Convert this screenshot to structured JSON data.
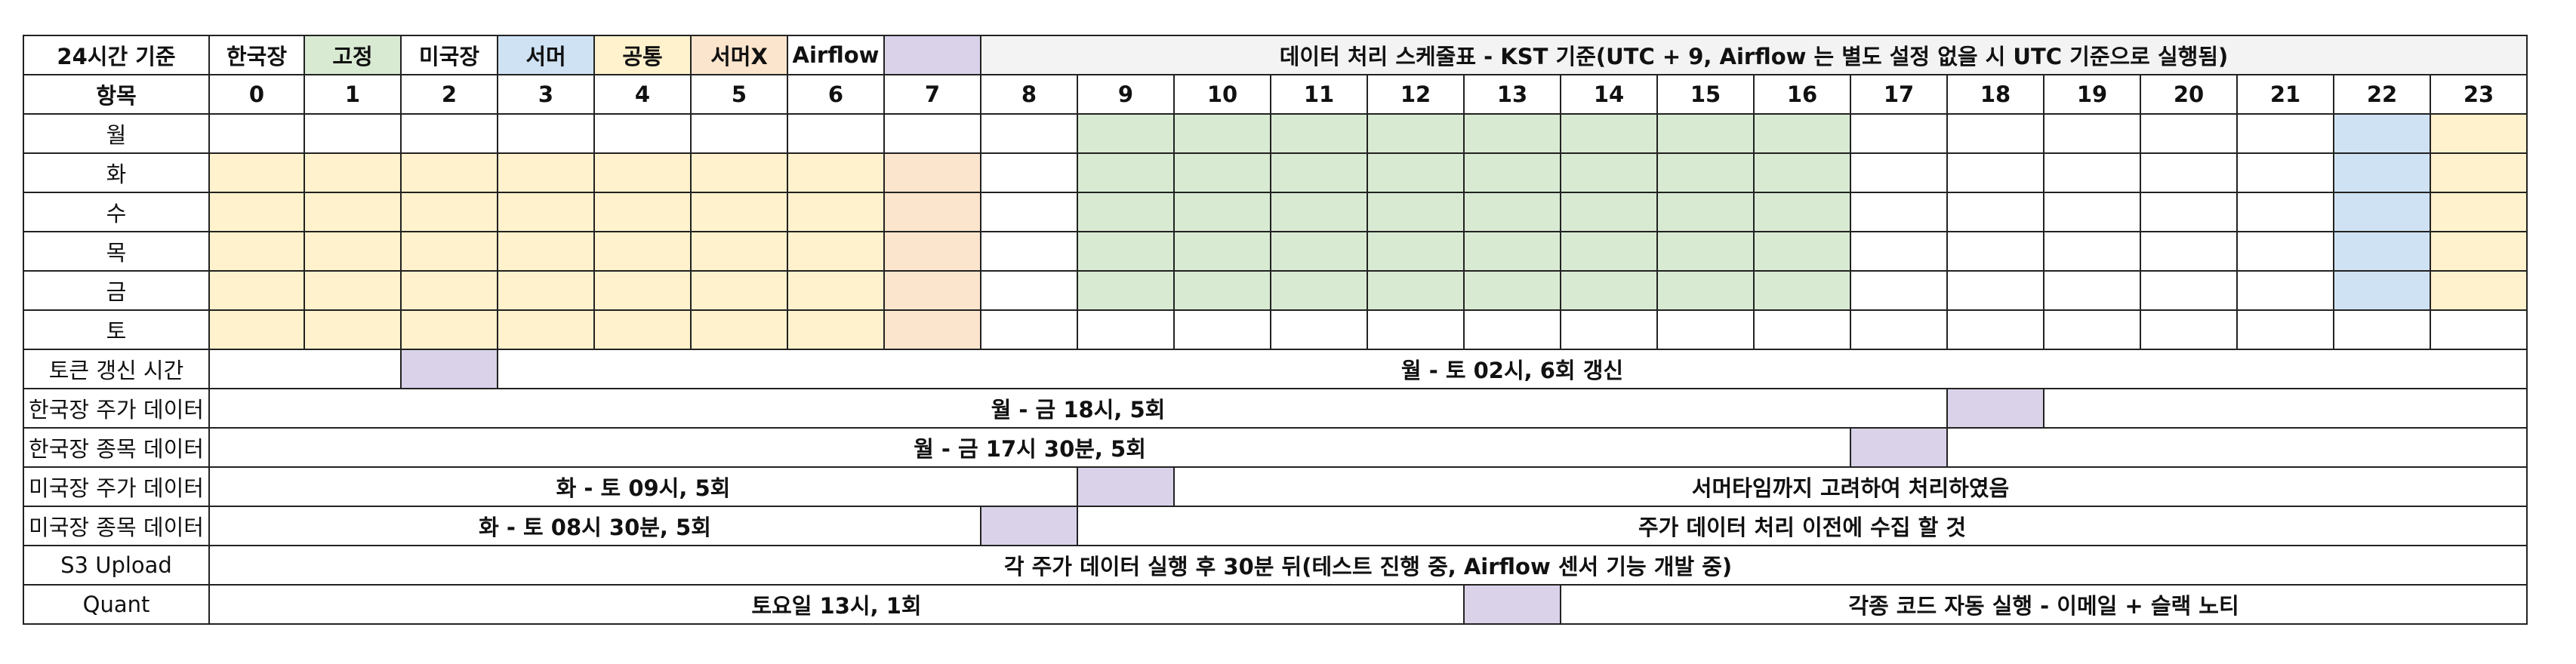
{
  "header": {
    "corner": "24시간 기준",
    "legend": [
      {
        "label": "한국장",
        "color": "#ffffff"
      },
      {
        "label": "고정",
        "color": "#d9ead3"
      },
      {
        "label": "미국장",
        "color": "#ffffff"
      },
      {
        "label": "서머",
        "color": "#cfe2f3"
      },
      {
        "label": "공통",
        "color": "#fff2cc"
      },
      {
        "label": "서머X",
        "color": "#fce5cd"
      },
      {
        "label": "Airflow",
        "color": "#ffffff"
      },
      {
        "label": "",
        "color": "#d9d2e9"
      }
    ],
    "title": "데이터 처리 스케줄표 - KST 기준(UTC + 9, Airflow 는 별도 설정 없을 시 UTC 기준으로 실행됨)",
    "item_label": "항목",
    "hours": [
      "0",
      "1",
      "2",
      "3",
      "4",
      "5",
      "6",
      "7",
      "8",
      "9",
      "10",
      "11",
      "12",
      "13",
      "14",
      "15",
      "16",
      "17",
      "18",
      "19",
      "20",
      "21",
      "22",
      "23"
    ]
  },
  "colors": {
    "fixed": "#d9ead3",
    "summer": "#cfe2f3",
    "common": "#fff2cc",
    "no_summer": "#fce5cd",
    "airflow": "#d9d2e9",
    "title_bg": "#f3f3f3",
    "empty": "#ffffff"
  },
  "days": [
    {
      "label": "월",
      "cells": [
        "",
        "",
        "",
        "",
        "",
        "",
        "",
        "",
        "",
        "fixed",
        "fixed",
        "fixed",
        "fixed",
        "fixed",
        "fixed",
        "fixed",
        "fixed",
        "",
        "",
        "",
        "",
        "",
        "summer",
        "common"
      ]
    },
    {
      "label": "화",
      "cells": [
        "common",
        "common",
        "common",
        "common",
        "common",
        "common",
        "common",
        "no_summer",
        "",
        "fixed",
        "fixed",
        "fixed",
        "fixed",
        "fixed",
        "fixed",
        "fixed",
        "fixed",
        "",
        "",
        "",
        "",
        "",
        "summer",
        "common"
      ]
    },
    {
      "label": "수",
      "cells": [
        "common",
        "common",
        "common",
        "common",
        "common",
        "common",
        "common",
        "no_summer",
        "",
        "fixed",
        "fixed",
        "fixed",
        "fixed",
        "fixed",
        "fixed",
        "fixed",
        "fixed",
        "",
        "",
        "",
        "",
        "",
        "summer",
        "common"
      ]
    },
    {
      "label": "목",
      "cells": [
        "common",
        "common",
        "common",
        "common",
        "common",
        "common",
        "common",
        "no_summer",
        "",
        "fixed",
        "fixed",
        "fixed",
        "fixed",
        "fixed",
        "fixed",
        "fixed",
        "fixed",
        "",
        "",
        "",
        "",
        "",
        "summer",
        "common"
      ]
    },
    {
      "label": "금",
      "cells": [
        "common",
        "common",
        "common",
        "common",
        "common",
        "common",
        "common",
        "no_summer",
        "",
        "fixed",
        "fixed",
        "fixed",
        "fixed",
        "fixed",
        "fixed",
        "fixed",
        "fixed",
        "",
        "",
        "",
        "",
        "",
        "summer",
        "common"
      ]
    },
    {
      "label": "토",
      "cells": [
        "common",
        "common",
        "common",
        "common",
        "common",
        "common",
        "common",
        "no_summer",
        "",
        "",
        "",
        "",
        "",
        "",
        "",
        "",
        "",
        "",
        "",
        "",
        "",
        "",
        "",
        ""
      ]
    }
  ],
  "tasks": [
    {
      "label": "토큰 갱신 시간",
      "segments": [
        {
          "span": 2,
          "text": "",
          "fill": "empty"
        },
        {
          "span": 1,
          "text": "",
          "fill": "airflow"
        },
        {
          "span": 21,
          "text": "월 - 토 02시, 6회 갱신",
          "fill": "empty"
        }
      ]
    },
    {
      "label": "한국장 주가 데이터",
      "segments": [
        {
          "span": 18,
          "text": "월 - 금 18시, 5회",
          "fill": "empty"
        },
        {
          "span": 1,
          "text": "",
          "fill": "airflow"
        },
        {
          "span": 5,
          "text": "",
          "fill": "empty"
        }
      ]
    },
    {
      "label": "한국장 종목 데이터",
      "segments": [
        {
          "span": 17,
          "text": "월 - 금 17시 30분, 5회",
          "fill": "empty"
        },
        {
          "span": 1,
          "text": "",
          "fill": "airflow"
        },
        {
          "span": 6,
          "text": "",
          "fill": "empty"
        }
      ]
    },
    {
      "label": "미국장 주가 데이터",
      "segments": [
        {
          "span": 9,
          "text": "화 - 토 09시, 5회",
          "fill": "empty"
        },
        {
          "span": 1,
          "text": "",
          "fill": "airflow"
        },
        {
          "span": 14,
          "text": "서머타임까지 고려하여 처리하였음",
          "fill": "empty"
        }
      ]
    },
    {
      "label": "미국장 종목 데이터",
      "segments": [
        {
          "span": 8,
          "text": "화 - 토 08시 30분, 5회",
          "fill": "empty"
        },
        {
          "span": 1,
          "text": "",
          "fill": "airflow"
        },
        {
          "span": 15,
          "text": "주가 데이터 처리 이전에 수집 할 것",
          "fill": "empty"
        }
      ]
    },
    {
      "label": "S3 Upload",
      "segments": [
        {
          "span": 24,
          "text": "각 주가 데이터 실행 후 30분 뒤(테스트 진행 중, Airflow 센서 기능 개발 중)",
          "fill": "empty"
        }
      ]
    },
    {
      "label": "Quant",
      "segments": [
        {
          "span": 13,
          "text": "토요일 13시, 1회",
          "fill": "empty"
        },
        {
          "span": 1,
          "text": "",
          "fill": "airflow"
        },
        {
          "span": 10,
          "text": "각종 코드 자동 실행 - 이메일 + 슬랙 노티",
          "fill": "empty"
        }
      ]
    }
  ]
}
